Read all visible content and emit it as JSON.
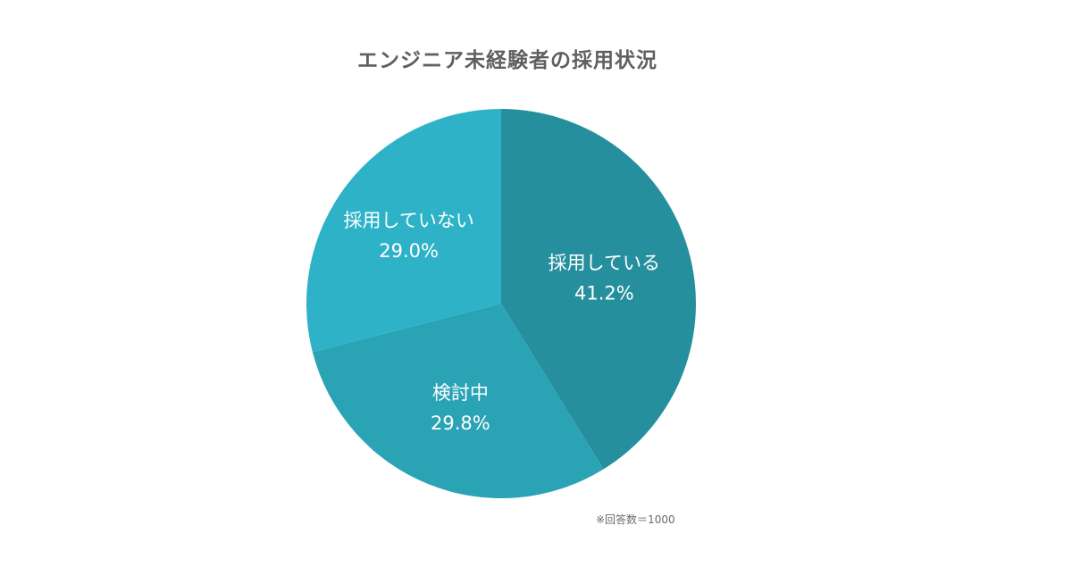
{
  "chart_data": {
    "type": "pie",
    "title": "エンジニア未経験者の採用状況",
    "slices": [
      {
        "label": "採用している",
        "value": 41.2,
        "value_label": "41.2%",
        "color": "#268f9e"
      },
      {
        "label": "検討中",
        "value": 29.8,
        "value_label": "29.8%",
        "color": "#2aa3b4"
      },
      {
        "label": "採用していない",
        "value": 29.0,
        "value_label": "29.0%",
        "color": "#2eb2c8"
      }
    ],
    "start_angle": "12 o'clock",
    "direction": "clockwise",
    "note": "※回答数＝1000"
  }
}
